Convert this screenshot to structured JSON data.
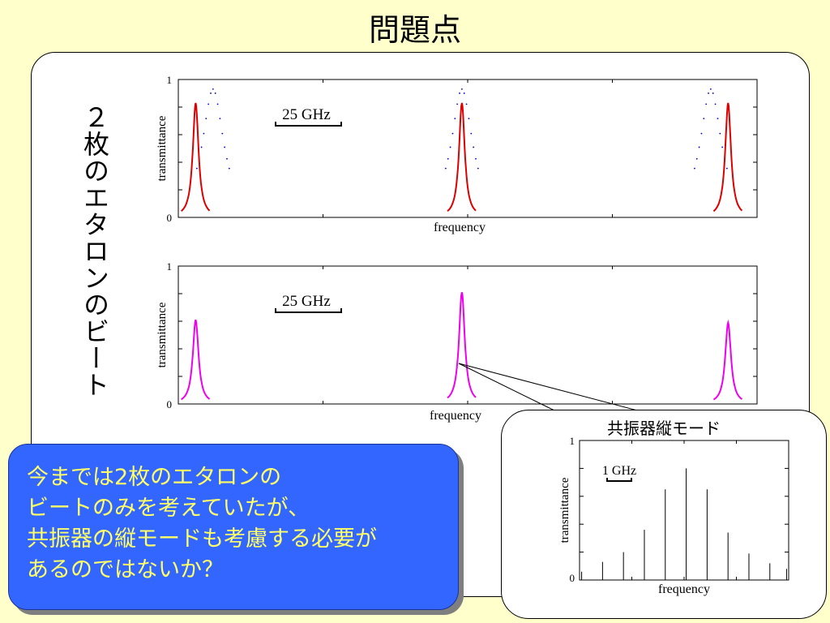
{
  "slide": {
    "title": "問題点",
    "vertical_label": "２枚のエタロンのビート",
    "callout_lines": [
      "今までは2枚のエタロンの",
      "ビートのみを考えていたが、",
      "共振器の縦モードも考慮する必要が",
      "あるのではないか？"
    ],
    "inset_title": "共振器縦モード"
  },
  "colors": {
    "background": "#ffffcc",
    "callout": "#3366ff",
    "callout_text": "#ffff66",
    "etalon_red": "#dd0000",
    "etalon_blue": "#0000cc",
    "beat_magenta": "#ee00ee",
    "mode_line": "#000000"
  },
  "chart_data": [
    {
      "type": "line",
      "xlabel": "frequency",
      "ylabel": "transmittance",
      "ylim": [
        0,
        1
      ],
      "yticks": [
        "0",
        "1"
      ],
      "scale_bar": "25 GHz",
      "series": [
        {
          "style": "solid",
          "color": "#dd0000",
          "peak_x": [
            0.03,
            0.49,
            0.95
          ],
          "height": 0.83,
          "width": 0.006
        },
        {
          "style": "dotted",
          "color": "#0000cc",
          "peak_x": [
            0.06,
            0.49,
            0.92
          ],
          "height": 0.93,
          "width": 0.022,
          "visible_floor": 0.33
        }
      ]
    },
    {
      "type": "line",
      "xlabel": "frequency",
      "ylabel": "transmittance",
      "ylim": [
        0,
        1
      ],
      "yticks": [
        "0",
        "1"
      ],
      "scale_bar": "25 GHz",
      "series": [
        {
          "style": "solid",
          "color": "#ee00ee",
          "peak_x": [
            0.03,
            0.49,
            0.95
          ],
          "peak_y": [
            0.61,
            0.81,
            0.59
          ],
          "width": 0.006
        }
      ]
    },
    {
      "type": "bar",
      "xlabel": "frequency",
      "ylabel": "transmittance",
      "ylim": [
        0,
        1
      ],
      "yticks": [
        "0",
        "1"
      ],
      "scale_bar": "1 GHz",
      "series": [
        {
          "color": "#000000",
          "x": [
            0.01,
            0.11,
            0.21,
            0.31,
            0.41,
            0.51,
            0.61,
            0.71,
            0.81,
            0.91,
            0.99
          ],
          "values": [
            0.06,
            0.13,
            0.2,
            0.36,
            0.65,
            0.8,
            0.65,
            0.34,
            0.19,
            0.12,
            0.08
          ]
        }
      ]
    }
  ]
}
